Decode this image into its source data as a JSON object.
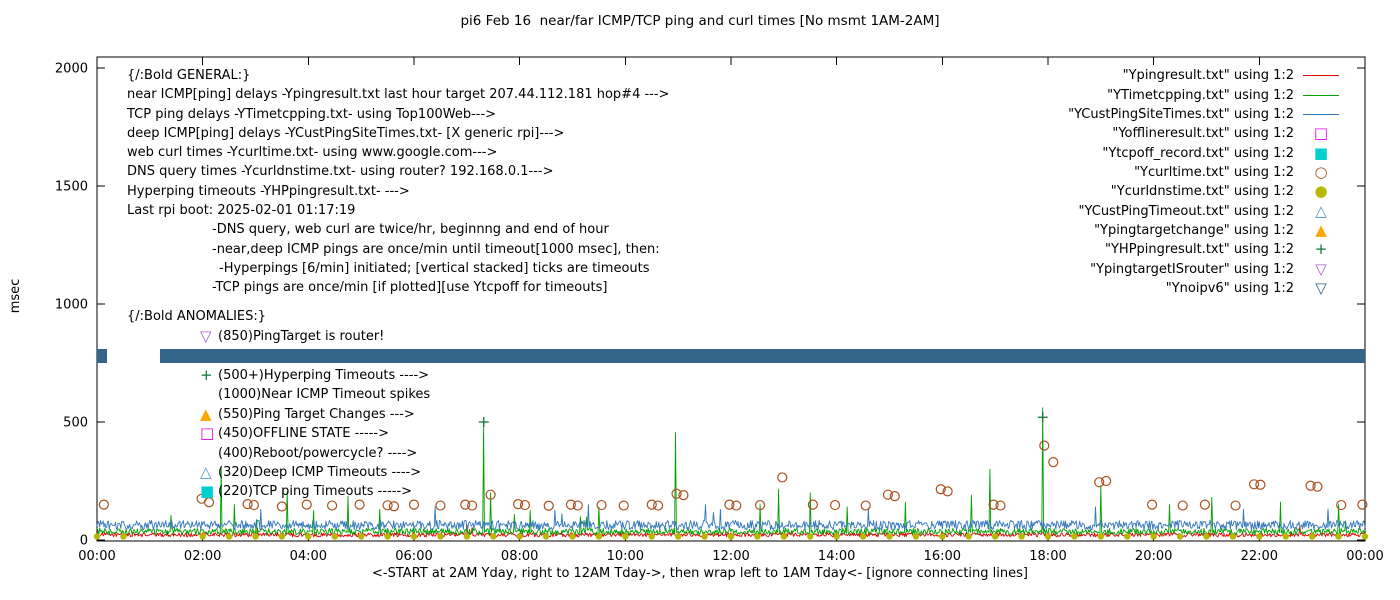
{
  "title": "pi6 Feb 16  near/far ICMP/TCP ping and curl times [No msmt 1AM-2AM]",
  "ylabel": "msec",
  "xlabel": "<-START at 2AM Yday, right to 12AM Tday->, then wrap left to 1AM Tday<- [ignore connecting lines]",
  "legend": {
    "items": [
      {
        "label": "\"Ypingresult.txt\" using 1:2",
        "style": "line",
        "color": "#e00000"
      },
      {
        "label": "\"YTimetcpping.txt\" using 1:2",
        "style": "line",
        "color": "#00a000"
      },
      {
        "label": "\"YCustPingSiteTimes.txt\" using 1:2",
        "style": "line",
        "color": "#3377bb"
      },
      {
        "label": "\"Yofflineresult.txt\" using 1:2",
        "style": "square-open",
        "color": "#e800e8"
      },
      {
        "label": "\"Ytcpoff_record.txt\" using 1:2",
        "style": "square-filled",
        "color": "#00d0d0"
      },
      {
        "label": "\"Ycurltime.txt\" using 1:2",
        "style": "circle-open",
        "color": "#a9501e"
      },
      {
        "label": "\"Ycurldnstime.txt\" using 1:2",
        "style": "circle-filled",
        "color": "#b8b800"
      },
      {
        "label": "\"YCustPingTimeout.txt\" using 1:2",
        "style": "triangle-open",
        "color": "#4f94cd"
      },
      {
        "label": "\"Ypingtargetchange\" using 1:2",
        "style": "triangle-filled",
        "color": "#ffa500"
      },
      {
        "label": "\"YHPpingresult.txt\" using 1:2",
        "style": "plus",
        "color": "#0b7536"
      },
      {
        "label": "\"YpingtargetISrouter\" using 1:2",
        "style": "nabla-open",
        "color": "#a55fd5"
      },
      {
        "label": "\"Ynoipv6\" using 1:2",
        "style": "nabla-open",
        "color": "#33658a"
      }
    ]
  },
  "annotations": {
    "general": [
      {
        "text": "{/:Bold GENERAL:}",
        "indent": 0
      },
      {
        "text": "near ICMP[ping] delays -Ypingresult.txt last hour target 207.44.112.181 hop#4 --->",
        "indent": 0
      },
      {
        "text": "TCP ping delays -YTimetcpping.txt- using Top100Web--->",
        "indent": 0
      },
      {
        "text": "deep ICMP[ping] delays -YCustPingSiteTimes.txt- [X generic rpi]--->",
        "indent": 0
      },
      {
        "text": "web curl times -Ycurltime.txt- using www.google.com--->",
        "indent": 0
      },
      {
        "text": "DNS query times -Ycurldnstime.txt- using router? 192.168.0.1--->",
        "indent": 0
      },
      {
        "text": "Hyperping timeouts -YHPpingresult.txt- --->",
        "indent": 0
      },
      {
        "text": "Last rpi boot: 2025-02-01 01:17:19",
        "indent": 0
      },
      {
        "text": "-DNS query, web curl are twice/hr, beginnng and end of hour",
        "indent": 1
      },
      {
        "text": "-near,deep ICMP pings are once/min until timeout[1000 msec], then:",
        "indent": 1
      },
      {
        "text": "-Hyperpings [6/min] initiated; [vertical stacked] ticks are timeouts",
        "indent": 2
      },
      {
        "text": "-TCP pings are once/min [if plotted][use Ytcpoff for timeouts]",
        "indent": 1
      }
    ],
    "anomalies_header": "{/:Bold ANOMALIES:}",
    "anomalies": [
      {
        "glyph": "nabla-open",
        "color": "#a55fd5",
        "text": "(850)PingTarget is router!"
      },
      {
        "glyph": "nabla-open",
        "color": "#33658a",
        "text": ""
      },
      {
        "glyph": "plus",
        "color": "#0b7536",
        "text": "(500+)Hyperping Timeouts ---->"
      },
      {
        "glyph": "none",
        "color": "#000000",
        "text": "(1000)Near ICMP Timeout spikes"
      },
      {
        "glyph": "triangle-filled",
        "color": "#ffa500",
        "text": "(550)Ping Target Changes --->"
      },
      {
        "glyph": "square-open",
        "color": "#e800e8",
        "text": "(450)OFFLINE STATE ----->"
      },
      {
        "glyph": "none",
        "color": "#000000",
        "text": "(400)Reboot/powercycle? ---->"
      },
      {
        "glyph": "triangle-open",
        "color": "#4f94cd",
        "text": "(320)Deep ICMP Timeouts ---->"
      },
      {
        "glyph": "square-filled",
        "color": "#00d0d0",
        "text": "(220)TCP ping Timeouts ----->"
      }
    ]
  },
  "chart_data": {
    "type": "line",
    "title": "pi6 Feb 16  near/far ICMP/TCP ping and curl times [No msmt 1AM-2AM]",
    "xlabel": "<-START at 2AM Yday, right to 12AM Tday->, then wrap left to 1AM Tday<- [ignore connecting lines]",
    "ylabel": "msec",
    "x_unit": "hours",
    "xlim": [
      0,
      24
    ],
    "ylim": [
      0,
      2000
    ],
    "grid": false,
    "legend_position": "top-right",
    "x_ticks": [
      "00:00",
      "02:00",
      "04:00",
      "06:00",
      "08:00",
      "10:00",
      "12:00",
      "14:00",
      "16:00",
      "18:00",
      "20:00",
      "22:00",
      "00:00"
    ],
    "y_ticks": [
      0,
      500,
      1000,
      1500,
      2000
    ],
    "series": [
      {
        "name": "Ypingresult.txt",
        "style": "line",
        "color": "#e00000",
        "baseline": 20,
        "noise": 9,
        "spikes": []
      },
      {
        "name": "YTimetcpping.txt",
        "style": "line",
        "color": "#00a000",
        "baseline": 32,
        "noise": 14,
        "spikes": [
          [
            2.35,
            310
          ],
          [
            2.6,
            150
          ],
          [
            3.6,
            205
          ],
          [
            4.1,
            125
          ],
          [
            4.75,
            185
          ],
          [
            5.35,
            130
          ],
          [
            7.32,
            490
          ],
          [
            7.45,
            200
          ],
          [
            8.2,
            125
          ],
          [
            9.5,
            140
          ],
          [
            10.95,
            455
          ],
          [
            12.55,
            150
          ],
          [
            12.9,
            215
          ],
          [
            13.5,
            200
          ],
          [
            14.2,
            140
          ],
          [
            15.3,
            160
          ],
          [
            16.55,
            190
          ],
          [
            16.9,
            300
          ],
          [
            17.9,
            560
          ],
          [
            19.0,
            230
          ],
          [
            20.3,
            150
          ],
          [
            21.1,
            180
          ],
          [
            22.4,
            160
          ],
          [
            23.5,
            150
          ]
        ]
      },
      {
        "name": "YCustPingSiteTimes.txt",
        "style": "line",
        "color": "#3377bb",
        "baseline": 58,
        "noise": 20,
        "spikes": [
          [
            3.1,
            130
          ],
          [
            6.4,
            140
          ],
          [
            9.3,
            150
          ],
          [
            11.8,
            130
          ],
          [
            14.6,
            135
          ],
          [
            18.9,
            140
          ],
          [
            21.7,
            130
          ]
        ]
      },
      {
        "name": "Ycurltime.txt",
        "style": "circle-open",
        "color": "#a9501e",
        "points": [
          [
            0.13,
            150
          ],
          [
            1.98,
            175
          ],
          [
            2.12,
            160
          ],
          [
            2.85,
            152
          ],
          [
            2.97,
            148
          ],
          [
            3.5,
            142
          ],
          [
            3.97,
            150
          ],
          [
            4.45,
            146
          ],
          [
            4.97,
            150
          ],
          [
            5.5,
            147
          ],
          [
            5.62,
            143
          ],
          [
            6.0,
            150
          ],
          [
            6.5,
            146
          ],
          [
            6.97,
            150
          ],
          [
            7.1,
            146
          ],
          [
            7.45,
            192
          ],
          [
            7.97,
            152
          ],
          [
            8.1,
            148
          ],
          [
            8.55,
            145
          ],
          [
            8.97,
            150
          ],
          [
            9.1,
            146
          ],
          [
            9.55,
            148
          ],
          [
            9.97,
            146
          ],
          [
            10.5,
            150
          ],
          [
            10.62,
            146
          ],
          [
            10.97,
            196
          ],
          [
            11.1,
            190
          ],
          [
            11.97,
            150
          ],
          [
            12.1,
            146
          ],
          [
            12.55,
            148
          ],
          [
            12.97,
            265
          ],
          [
            13.55,
            150
          ],
          [
            13.97,
            148
          ],
          [
            14.55,
            146
          ],
          [
            14.97,
            192
          ],
          [
            15.1,
            186
          ],
          [
            15.97,
            215
          ],
          [
            16.1,
            206
          ],
          [
            16.97,
            150
          ],
          [
            17.1,
            146
          ],
          [
            17.93,
            400
          ],
          [
            18.1,
            330
          ],
          [
            18.97,
            245
          ],
          [
            19.1,
            250
          ],
          [
            19.97,
            150
          ],
          [
            20.55,
            146
          ],
          [
            20.97,
            150
          ],
          [
            21.55,
            146
          ],
          [
            21.9,
            236
          ],
          [
            22.02,
            234
          ],
          [
            22.97,
            230
          ],
          [
            23.1,
            226
          ],
          [
            23.55,
            148
          ],
          [
            23.95,
            150
          ]
        ]
      },
      {
        "name": "Ycurldnstime.txt",
        "style": "circle-filled",
        "color": "#b8b800",
        "periodic": {
          "start": 0,
          "end": 24,
          "step": 0.5,
          "value": 15,
          "skip": [
            1.0,
            1.9
          ]
        }
      },
      {
        "name": "YHPpingresult.txt",
        "style": "plus",
        "color": "#0b7536",
        "points": [
          [
            7.32,
            500
          ],
          [
            17.9,
            520
          ]
        ]
      },
      {
        "name": "Ynoipv6",
        "style": "band",
        "color": "#33658a",
        "value": 780,
        "half_height_msec": 30,
        "segments": [
          [
            0,
            0.19
          ],
          [
            1.19,
            24
          ]
        ]
      }
    ]
  }
}
